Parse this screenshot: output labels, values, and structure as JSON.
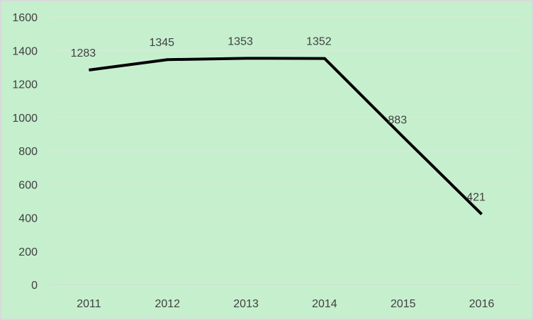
{
  "chart_data": {
    "type": "line",
    "title": "",
    "xlabel": "",
    "ylabel": "",
    "categories": [
      "2011",
      "2012",
      "2013",
      "2014",
      "2015",
      "2016"
    ],
    "series": [
      {
        "values": [
          1283,
          1345,
          1353,
          1352,
          883,
          421
        ]
      }
    ],
    "data_labels": [
      "1283",
      "1345",
      "1353",
      "1352",
      "883",
      "421"
    ],
    "ylim": [
      0,
      1600
    ],
    "yticks": [
      "0",
      "200",
      "400",
      "600",
      "800",
      "1000",
      "1200",
      "1400",
      "1600"
    ],
    "grid": true,
    "legend": "none",
    "colors": {
      "background": "#c6efce",
      "line": "#000000",
      "grid": "#d9e9d9",
      "border": "#d9d9d9"
    }
  }
}
